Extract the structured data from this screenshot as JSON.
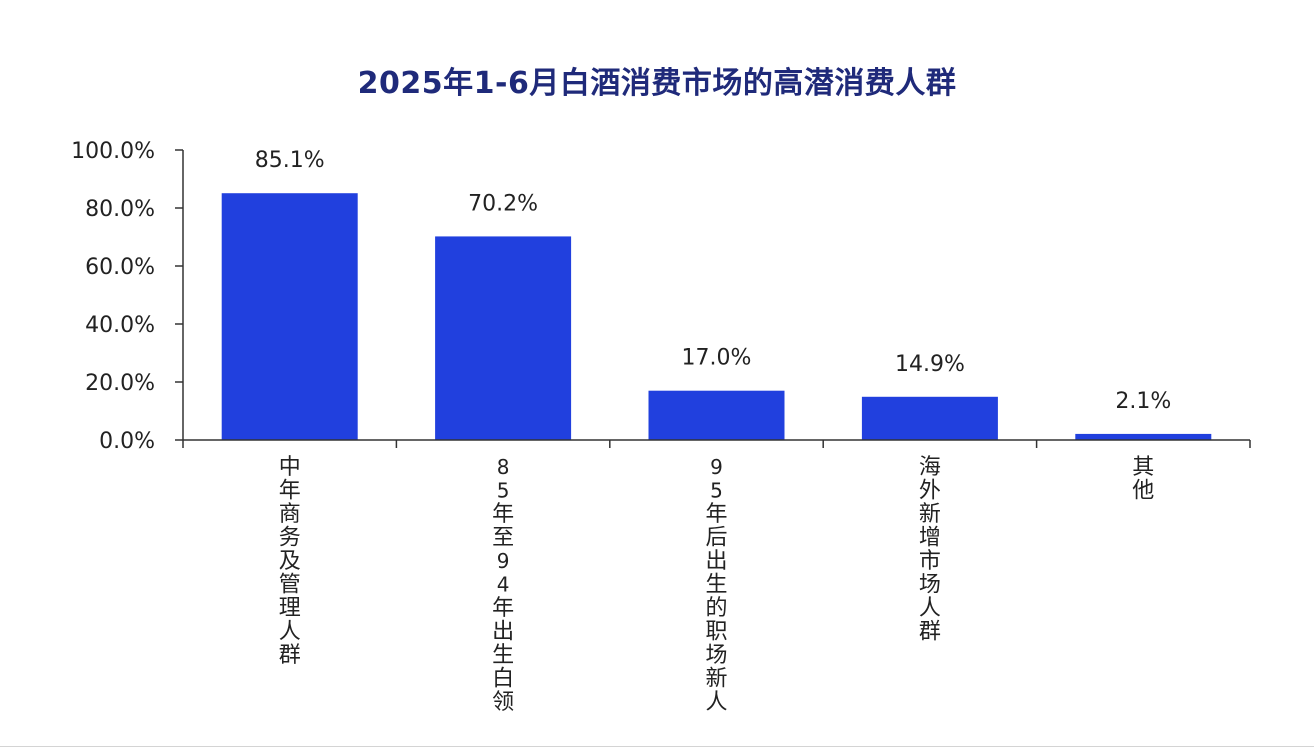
{
  "chart_data": {
    "type": "bar",
    "title": "2025年1-6月白酒消费市场的高潜消费人群",
    "categories": [
      "中年商务及管理人群",
      "85年至94年出生白领",
      "95年后出生的职场新人",
      "海外新增市场人群",
      "其他"
    ],
    "values": [
      85.1,
      70.2,
      17.0,
      14.9,
      2.1
    ],
    "data_labels": [
      "85.1%",
      "70.2%",
      "17.0%",
      "14.9%",
      "2.1%"
    ],
    "yticks": [
      "0.0%",
      "20.0%",
      "40.0%",
      "60.0%",
      "80.0%",
      "100.0%"
    ],
    "ylim": [
      0,
      100
    ],
    "xlabel": "",
    "ylabel": "",
    "grid": false,
    "legend": "none",
    "colors": {
      "bar": "#2140de",
      "title": "#1f2a7a",
      "axis": "#333333"
    }
  }
}
